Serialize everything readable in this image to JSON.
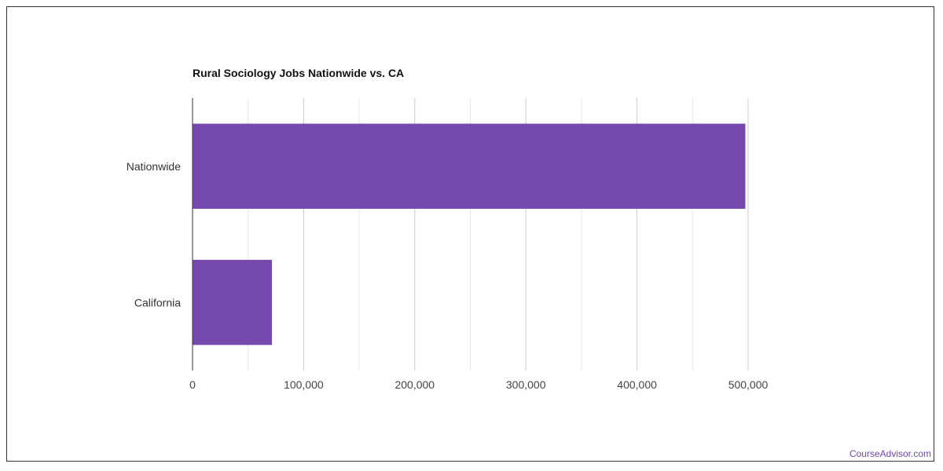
{
  "chart_data": {
    "type": "bar",
    "orientation": "horizontal",
    "title": "Rural Sociology Jobs Nationwide vs. CA",
    "categories": [
      "Nationwide",
      "California"
    ],
    "values": [
      497500,
      71500
    ],
    "xlim": [
      0,
      500000
    ],
    "x_ticks": [
      0,
      100000,
      200000,
      300000,
      400000,
      500000
    ],
    "x_tick_labels": [
      "0",
      "100,000",
      "200,000",
      "300,000",
      "400,000",
      "500,000"
    ],
    "xlabel": "",
    "ylabel": "",
    "grid": true,
    "legend": "none",
    "bar_color": "#7549ae"
  },
  "attribution": "CourseAdvisor.com"
}
